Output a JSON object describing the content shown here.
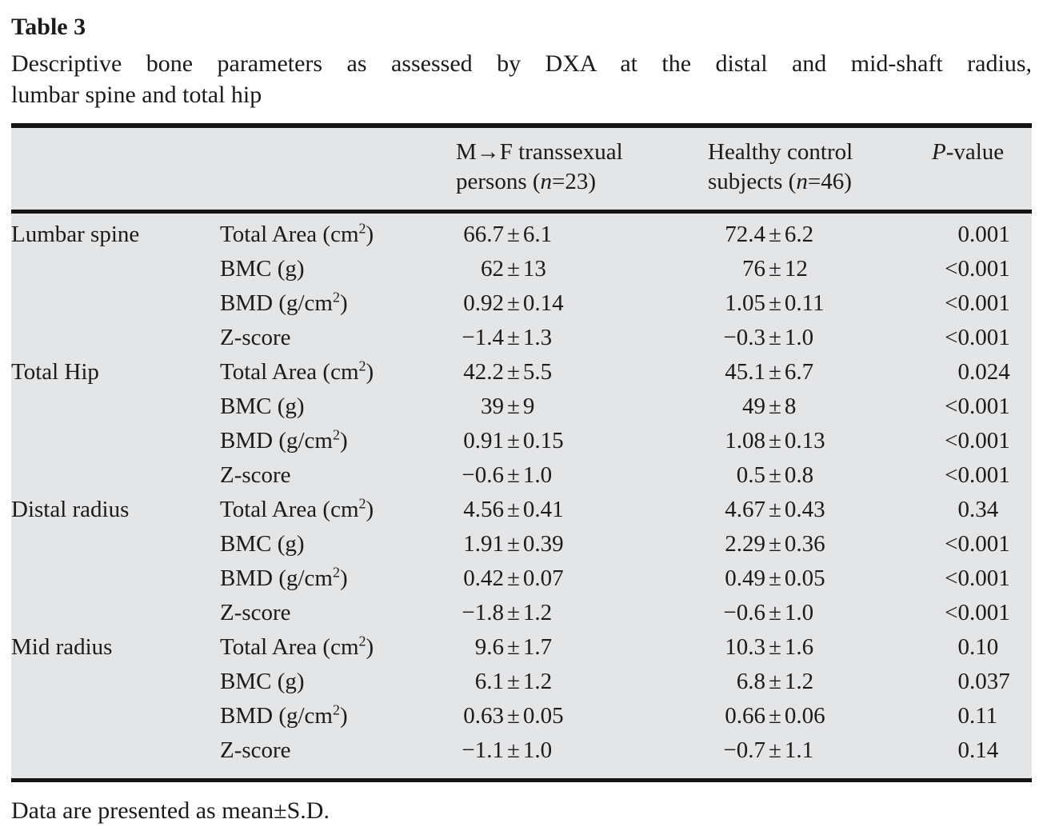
{
  "page": {
    "title": "Table 3",
    "caption_line1": "Descriptive bone parameters as assessed by DXA at the distal and mid-shaft radius,",
    "caption_line2": "lumbar spine and total hip",
    "footnote": "Data are presented as mean±S.D."
  },
  "symbols": {
    "plus_minus": "±"
  },
  "header": {
    "mtf": {
      "line1": "M→F transsexual",
      "line2_pre": "persons (",
      "n": "n",
      "line2_post": "=23)"
    },
    "ctrl": {
      "line1": "Healthy control",
      "line2_pre": "subjects (",
      "n": "n",
      "line2_post": "=46)"
    },
    "p": {
      "italic": "P",
      "suffix": "-value"
    }
  },
  "sections": [
    {
      "region": "Lumbar spine",
      "rows": [
        {
          "param": {
            "pre": "Total Area (cm",
            "sup": "2",
            "post": ")"
          },
          "mtf": {
            "mean": "66.7",
            "sd": "6.1"
          },
          "ctrl": {
            "mean": "72.4",
            "sd": "6.2"
          },
          "p": {
            "pre": "0",
            "post": ".001"
          }
        },
        {
          "param": {
            "pre": "BMC (g)",
            "sup": "",
            "post": ""
          },
          "mtf": {
            "mean": "62",
            "sd": "13"
          },
          "ctrl": {
            "mean": "76",
            "sd": "12"
          },
          "p": {
            "pre": "<0",
            "post": ".001"
          }
        },
        {
          "param": {
            "pre": "BMD (g/cm",
            "sup": "2",
            "post": ")"
          },
          "mtf": {
            "mean": "0.92",
            "sd": "0.14"
          },
          "ctrl": {
            "mean": "1.05",
            "sd": "0.11"
          },
          "p": {
            "pre": "<0",
            "post": ".001"
          }
        },
        {
          "param": {
            "pre": "Z-score",
            "sup": "",
            "post": ""
          },
          "mtf": {
            "mean": "−1.4",
            "sd": "1.3"
          },
          "ctrl": {
            "mean": "−0.3",
            "sd": "1.0"
          },
          "p": {
            "pre": "<0",
            "post": ".001"
          }
        }
      ]
    },
    {
      "region": "Total Hip",
      "rows": [
        {
          "param": {
            "pre": "Total Area (cm",
            "sup": "2",
            "post": ")"
          },
          "mtf": {
            "mean": "42.2",
            "sd": "5.5"
          },
          "ctrl": {
            "mean": "45.1",
            "sd": "6.7"
          },
          "p": {
            "pre": "0",
            "post": ".024"
          }
        },
        {
          "param": {
            "pre": "BMC (g)",
            "sup": "",
            "post": ""
          },
          "mtf": {
            "mean": "39",
            "sd": "9"
          },
          "ctrl": {
            "mean": "49",
            "sd": "8"
          },
          "p": {
            "pre": "<0",
            "post": ".001"
          }
        },
        {
          "param": {
            "pre": "BMD (g/cm",
            "sup": "2",
            "post": ")"
          },
          "mtf": {
            "mean": "0.91",
            "sd": "0.15"
          },
          "ctrl": {
            "mean": "1.08",
            "sd": "0.13"
          },
          "p": {
            "pre": "<0",
            "post": ".001"
          }
        },
        {
          "param": {
            "pre": "Z-score",
            "sup": "",
            "post": ""
          },
          "mtf": {
            "mean": "−0.6",
            "sd": "1.0"
          },
          "ctrl": {
            "mean": "0.5",
            "sd": "0.8"
          },
          "p": {
            "pre": "<0",
            "post": ".001"
          }
        }
      ]
    },
    {
      "region": "Distal radius",
      "rows": [
        {
          "param": {
            "pre": "Total Area (cm",
            "sup": "2",
            "post": ")"
          },
          "mtf": {
            "mean": "4.56",
            "sd": "0.41"
          },
          "ctrl": {
            "mean": "4.67",
            "sd": "0.43"
          },
          "p": {
            "pre": "0",
            "post": ".34"
          }
        },
        {
          "param": {
            "pre": "BMC (g)",
            "sup": "",
            "post": ""
          },
          "mtf": {
            "mean": "1.91",
            "sd": "0.39"
          },
          "ctrl": {
            "mean": "2.29",
            "sd": "0.36"
          },
          "p": {
            "pre": "<0",
            "post": ".001"
          }
        },
        {
          "param": {
            "pre": "BMD (g/cm",
            "sup": "2",
            "post": ")"
          },
          "mtf": {
            "mean": "0.42",
            "sd": "0.07"
          },
          "ctrl": {
            "mean": "0.49",
            "sd": "0.05"
          },
          "p": {
            "pre": "<0",
            "post": ".001"
          }
        },
        {
          "param": {
            "pre": "Z-score",
            "sup": "",
            "post": ""
          },
          "mtf": {
            "mean": "−1.8",
            "sd": "1.2"
          },
          "ctrl": {
            "mean": "−0.6",
            "sd": "1.0"
          },
          "p": {
            "pre": "<0",
            "post": ".001"
          }
        }
      ]
    },
    {
      "region": "Mid radius",
      "rows": [
        {
          "param": {
            "pre": "Total Area (cm",
            "sup": "2",
            "post": ")"
          },
          "mtf": {
            "mean": "9.6",
            "sd": "1.7"
          },
          "ctrl": {
            "mean": "10.3",
            "sd": "1.6"
          },
          "p": {
            "pre": "0",
            "post": ".10"
          }
        },
        {
          "param": {
            "pre": "BMC (g)",
            "sup": "",
            "post": ""
          },
          "mtf": {
            "mean": "6.1",
            "sd": "1.2"
          },
          "ctrl": {
            "mean": "6.8",
            "sd": "1.2"
          },
          "p": {
            "pre": "0",
            "post": ".037"
          }
        },
        {
          "param": {
            "pre": "BMD (g/cm",
            "sup": "2",
            "post": ")"
          },
          "mtf": {
            "mean": "0.63",
            "sd": "0.05"
          },
          "ctrl": {
            "mean": "0.66",
            "sd": "0.06"
          },
          "p": {
            "pre": "0",
            "post": ".11"
          }
        },
        {
          "param": {
            "pre": "Z-score",
            "sup": "",
            "post": ""
          },
          "mtf": {
            "mean": "−1.1",
            "sd": "1.0"
          },
          "ctrl": {
            "mean": "−0.7",
            "sd": "1.1"
          },
          "p": {
            "pre": "0",
            "post": ".14"
          }
        }
      ]
    }
  ]
}
